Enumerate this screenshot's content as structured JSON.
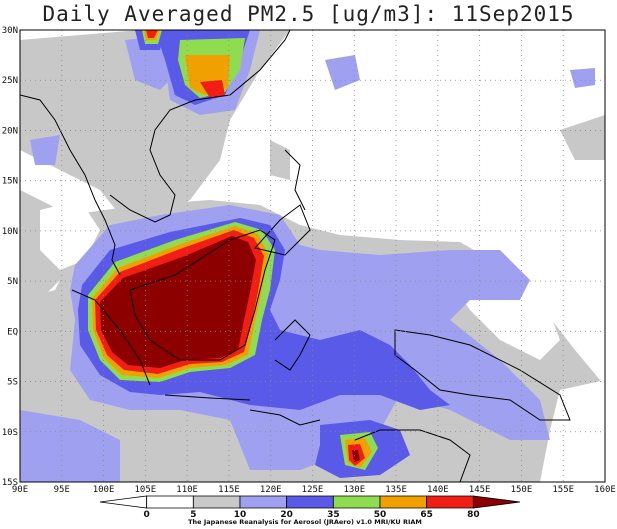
{
  "title": "Daily Averaged PM2.5 [ug/m3]: 11Sep2015",
  "map": {
    "lon_range": [
      "90E",
      "160E"
    ],
    "lat_range": [
      "15S",
      "30N"
    ],
    "lat_ticks": [
      "30N",
      "25N",
      "20N",
      "15N",
      "10N",
      "5N",
      "EQ",
      "5S",
      "10S",
      "15S"
    ],
    "lon_ticks": [
      "90E",
      "95E",
      "100E",
      "105E",
      "110E",
      "115E",
      "120E",
      "125E",
      "130E",
      "135E",
      "140E",
      "145E",
      "150E",
      "155E",
      "160E"
    ],
    "grid": "dotted"
  },
  "colorbar": {
    "levels": [
      "0",
      "5",
      "10",
      "20",
      "35",
      "50",
      "65",
      "80"
    ],
    "colors": [
      "#ffffff",
      "#ffffff",
      "#c8c8c8",
      "#a0a0f0",
      "#5a5ae8",
      "#90dc50",
      "#f0a000",
      "#f01e14",
      "#8c0000"
    ]
  },
  "credit": "The Japanese Reanalysis for Aerosol (JRAero) v1.0 MRI/KU RIAM"
}
